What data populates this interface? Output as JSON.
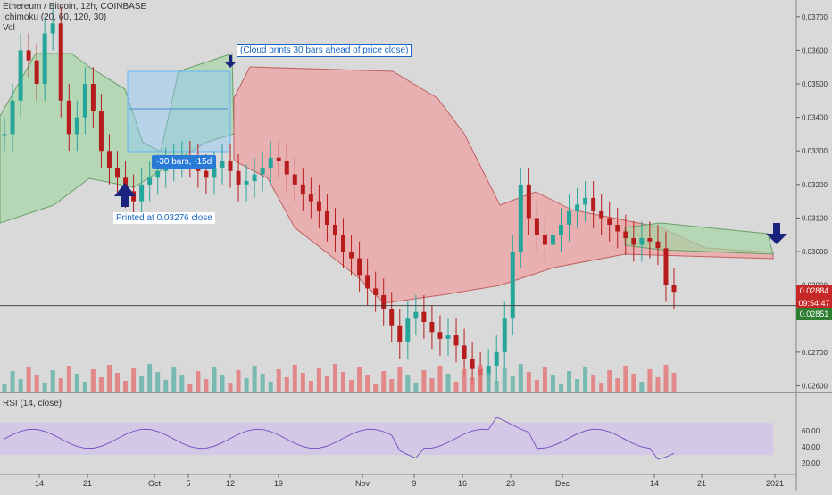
{
  "legend": {
    "title": "Ethereum / Bitcoin, 12h, COINBASE",
    "indicator": "Ichimoku (20, 60, 120, 30)",
    "volume": "Vol",
    "rsi": "RSI (14, close)"
  },
  "annotations": {
    "top_note": "(Cloud prints 30 bars ahead of price close)",
    "bottom_note": "Printed at 0.03276 close",
    "measure": "-30 bars, -15d"
  },
  "price_tags": {
    "last": "0.02884",
    "countdown": "09:54:47",
    "cloud": "0.02851"
  },
  "colors": {
    "up": "#26a69a",
    "down": "#b71c1c",
    "vol_up": "#5fb0a8",
    "vol_down": "#e57373",
    "cloud_bull": "#a5d6a7",
    "cloud_bear": "#ef9a9a",
    "rsi_band": "#d1c4e9",
    "arrow": "#1a237e"
  },
  "chart_data": {
    "type": "candlestick",
    "price_axis_ticks": [
      "0.03700",
      "0.03600",
      "0.03500",
      "0.03400",
      "0.03300",
      "0.03200",
      "0.03100",
      "0.03000",
      "0.02900",
      "0.02700",
      "0.02600"
    ],
    "ylim": [
      0.0258,
      0.0375
    ],
    "time_axis_ticks": [
      "14",
      "21",
      "Oct",
      "5",
      "12",
      "19",
      "Nov",
      "9",
      "16",
      "23",
      "Dec",
      "14",
      "21",
      "2021"
    ],
    "rsi_ticks": [
      "60.00",
      "40.00",
      "20.00"
    ],
    "rsi_band": [
      30,
      70
    ],
    "close_path": [
      0.0335,
      0.0345,
      0.036,
      0.0357,
      0.035,
      0.0365,
      0.0368,
      0.0345,
      0.0335,
      0.034,
      0.035,
      0.0342,
      0.033,
      0.0325,
      0.0322,
      0.0318,
      0.0315,
      0.032,
      0.0322,
      0.0324,
      0.0326,
      0.0327,
      0.0328,
      0.0327,
      0.0324,
      0.0322,
      0.0325,
      0.0327,
      0.0324,
      0.032,
      0.0321,
      0.0323,
      0.0325,
      0.0328,
      0.0327,
      0.0323,
      0.032,
      0.0317,
      0.0315,
      0.0312,
      0.0308,
      0.0305,
      0.03,
      0.0298,
      0.0293,
      0.0289,
      0.0287,
      0.0283,
      0.0278,
      0.0273,
      0.028,
      0.0282,
      0.0279,
      0.0276,
      0.0274,
      0.0275,
      0.0272,
      0.0268,
      0.0265,
      0.0263,
      0.0266,
      0.027,
      0.028,
      0.03,
      0.032,
      0.031,
      0.0305,
      0.0302,
      0.0305,
      0.0308,
      0.0312,
      0.0314,
      0.0316,
      0.0312,
      0.031,
      0.0308,
      0.0306,
      0.0304,
      0.0302,
      0.0304,
      0.0303,
      0.0301,
      0.029,
      0.0288
    ],
    "last_price": 0.02884
  }
}
